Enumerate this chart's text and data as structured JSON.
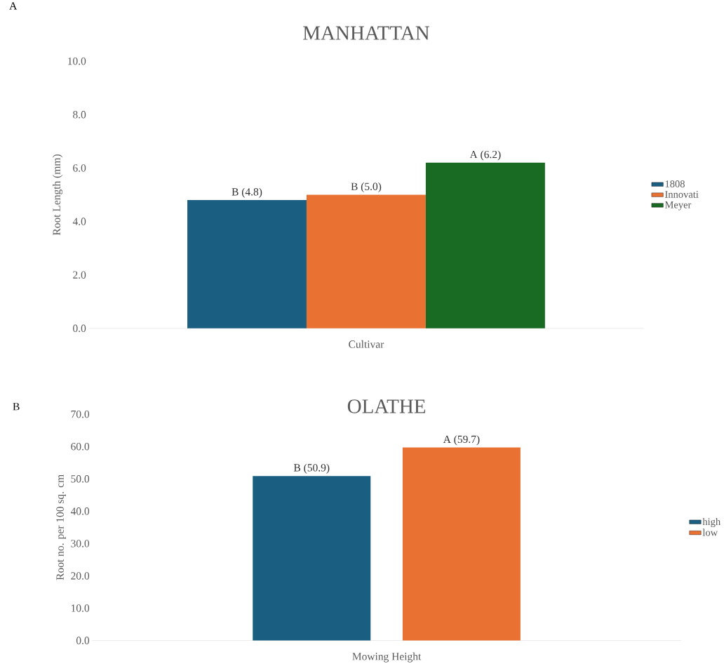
{
  "chart_data": [
    {
      "type": "bar",
      "title": "MANHATTAN",
      "xlabel": "Cultivar",
      "ylabel": "Root Length (mm)",
      "annotations": [
        "A"
      ],
      "categories": [
        null
      ],
      "series": [
        {
          "name": "1808",
          "color": "#1a5f82",
          "values": [
            4.8
          ],
          "value_labels": [
            "B (4.8)"
          ]
        },
        {
          "name": "Innovati",
          "color": "#e97132",
          "values": [
            5.0
          ],
          "value_labels": [
            "B (5.0)"
          ]
        },
        {
          "name": "Meyer",
          "color": "#196b24",
          "values": [
            6.2
          ],
          "value_labels": [
            "A (6.2)"
          ]
        }
      ],
      "ylim": [
        0,
        10
      ],
      "yticks": [
        {
          "value": 0,
          "label": "0.0"
        },
        {
          "value": 2,
          "label": "2.0"
        },
        {
          "value": 4,
          "label": "4.0"
        },
        {
          "value": 6,
          "label": "6.0"
        },
        {
          "value": 8,
          "label": "8.0"
        },
        {
          "value": 10,
          "label": "10.0"
        }
      ],
      "grid": false,
      "legend": "right"
    },
    {
      "type": "bar",
      "title": "OLATHE",
      "xlabel": "Mowing Height",
      "ylabel": "Root no. per 100 sq. cm",
      "annotations": [
        "B"
      ],
      "categories": [
        null
      ],
      "series": [
        {
          "name": "high",
          "color": "#1a5f82",
          "values": [
            50.9
          ],
          "value_labels": [
            "B (50.9)"
          ]
        },
        {
          "name": "low",
          "color": "#e97132",
          "values": [
            59.7
          ],
          "value_labels": [
            "A (59.7)"
          ]
        }
      ],
      "ylim": [
        0,
        70
      ],
      "yticks": [
        {
          "value": 0,
          "label": "0.0"
        },
        {
          "value": 10,
          "label": "10.0"
        },
        {
          "value": 20,
          "label": "20.0"
        },
        {
          "value": 30,
          "label": "30.0"
        },
        {
          "value": 40,
          "label": "40.0"
        },
        {
          "value": 50,
          "label": "50.0"
        },
        {
          "value": 60,
          "label": "60.0"
        },
        {
          "value": 70,
          "label": "70.0"
        }
      ],
      "grid": false,
      "legend": "right"
    }
  ]
}
